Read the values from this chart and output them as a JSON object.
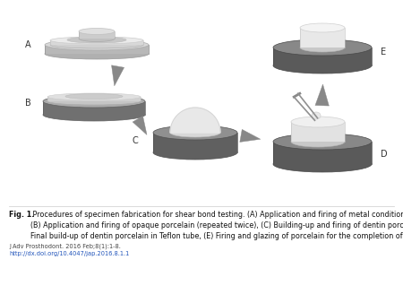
{
  "caption_bold": "Fig. 1.",
  "caption_rest": " Procedures of specimen fabrication for shear bond testing. (A) Application and firing of metal conditioner (repeated twice),\n(B) Application and firing of opaque porcelain (repeated twice), (C) Building-up and firing of dentin porcelain (repeated twice), (D)\nFinal build-up of dentin porcelain in Teflon tube, (E) Firing and glazing of porcelain for the completion of shear specimen.",
  "journal_ref": "J Adv Prosthodont. 2016 Feb;8(1):1-8.",
  "doi": "http://dx.doi.org/10.4047/jap.2016.8.1.1",
  "bg_color": "#ffffff",
  "label_color": "#333333",
  "arrow_color": "#888888"
}
